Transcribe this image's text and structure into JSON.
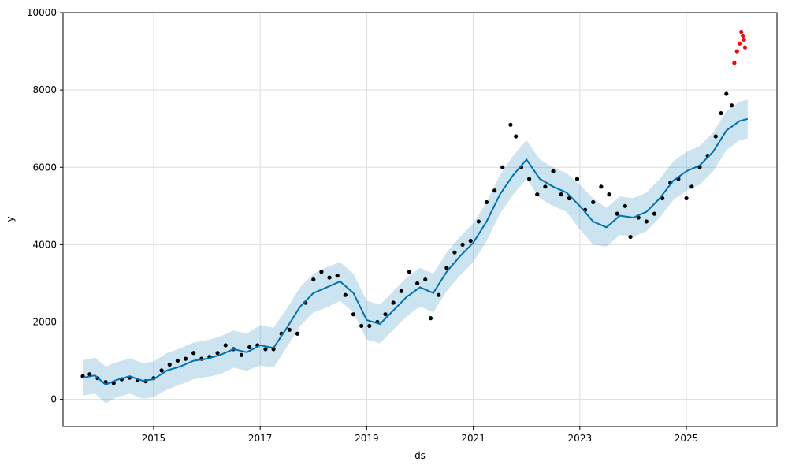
{
  "chart_data": {
    "type": "line",
    "title": "",
    "xlabel": "ds",
    "ylabel": "y",
    "xlim": [
      2013.3,
      2026.7
    ],
    "ylim": [
      -700,
      10000
    ],
    "x_ticks": [
      2015,
      2017,
      2019,
      2021,
      2023,
      2025
    ],
    "y_ticks": [
      0,
      2000,
      4000,
      6000,
      8000,
      10000
    ],
    "grid": true,
    "legend": "none",
    "colors": {
      "observed": "#000000",
      "forecast_line": "#0072B2",
      "uncertainty_band": "#0072B2",
      "new_points": "#ff0000",
      "grid": "#dddddd"
    },
    "series": [
      {
        "kind": "forecast",
        "x": [
          2013.67,
          2013.9,
          2014.1,
          2014.3,
          2014.55,
          2014.8,
          2015.0,
          2015.25,
          2015.5,
          2015.75,
          2016.0,
          2016.25,
          2016.5,
          2016.75,
          2017.0,
          2017.25,
          2017.5,
          2017.75,
          2018.0,
          2018.25,
          2018.5,
          2018.75,
          2019.0,
          2019.25,
          2019.5,
          2019.75,
          2020.0,
          2020.25,
          2020.5,
          2020.75,
          2021.0,
          2021.25,
          2021.5,
          2021.75,
          2022.0,
          2022.25,
          2022.5,
          2022.75,
          2023.0,
          2023.25,
          2023.5,
          2023.75,
          2024.0,
          2024.25,
          2024.5,
          2024.75,
          2025.0,
          2025.25,
          2025.5,
          2025.75,
          2026.0,
          2026.15
        ],
        "yhat": [
          560,
          620,
          380,
          500,
          600,
          480,
          520,
          750,
          850,
          1000,
          1050,
          1150,
          1300,
          1220,
          1400,
          1330,
          1850,
          2400,
          2750,
          2900,
          3050,
          2750,
          2050,
          1950,
          2300,
          2650,
          2900,
          2750,
          3300,
          3700,
          4050,
          4600,
          5300,
          5800,
          6200,
          5700,
          5500,
          5350,
          5000,
          4600,
          4450,
          4750,
          4700,
          4850,
          5200,
          5650,
          5900,
          6050,
          6400,
          6950,
          7200,
          7250
        ],
        "lower": [
          100,
          150,
          -100,
          50,
          150,
          20,
          60,
          250,
          380,
          520,
          580,
          650,
          820,
          740,
          880,
          820,
          1350,
          1900,
          2250,
          2380,
          2550,
          2250,
          1550,
          1450,
          1800,
          2150,
          2400,
          2250,
          2800,
          3200,
          3550,
          4100,
          4800,
          5300,
          5700,
          5200,
          5000,
          4850,
          4400,
          4000,
          3950,
          4250,
          4200,
          4350,
          4700,
          5150,
          5400,
          5550,
          5900,
          6450,
          6700,
          6750
        ],
        "upper": [
          1020,
          1080,
          850,
          960,
          1060,
          940,
          980,
          1200,
          1320,
          1470,
          1530,
          1630,
          1780,
          1700,
          1920,
          1850,
          2350,
          2900,
          3250,
          3420,
          3550,
          3250,
          2550,
          2450,
          2800,
          3150,
          3400,
          3250,
          3800,
          4200,
          4550,
          5100,
          5800,
          6300,
          6700,
          6200,
          6000,
          5850,
          5550,
          5200,
          4950,
          5250,
          5200,
          5350,
          5700,
          6150,
          6400,
          6550,
          6900,
          7450,
          7700,
          7750
        ]
      },
      {
        "kind": "observed",
        "x": [
          2013.67,
          2013.8,
          2013.95,
          2014.1,
          2014.25,
          2014.4,
          2014.55,
          2014.7,
          2014.85,
          2015.0,
          2015.15,
          2015.3,
          2015.45,
          2015.6,
          2015.75,
          2015.9,
          2016.05,
          2016.2,
          2016.35,
          2016.5,
          2016.65,
          2016.8,
          2016.95,
          2017.1,
          2017.25,
          2017.4,
          2017.55,
          2017.7,
          2017.85,
          2018.0,
          2018.15,
          2018.3,
          2018.45,
          2018.6,
          2018.75,
          2018.9,
          2019.05,
          2019.2,
          2019.35,
          2019.5,
          2019.65,
          2019.8,
          2019.95,
          2020.1,
          2020.2,
          2020.35,
          2020.5,
          2020.65,
          2020.8,
          2020.95,
          2021.1,
          2021.25,
          2021.4,
          2021.55,
          2021.7,
          2021.8,
          2021.9,
          2022.05,
          2022.2,
          2022.35,
          2022.5,
          2022.65,
          2022.8,
          2022.95,
          2023.1,
          2023.25,
          2023.4,
          2023.55,
          2023.7,
          2023.85,
          2023.95,
          2024.1,
          2024.25,
          2024.4,
          2024.55,
          2024.7,
          2024.85,
          2025.0,
          2025.1,
          2025.25,
          2025.4,
          2025.55,
          2025.65,
          2025.75,
          2025.85
        ],
        "y": [
          600,
          650,
          550,
          450,
          420,
          520,
          560,
          500,
          470,
          550,
          750,
          900,
          1000,
          1050,
          1200,
          1050,
          1100,
          1200,
          1400,
          1300,
          1150,
          1350,
          1400,
          1300,
          1300,
          1700,
          1800,
          1700,
          2500,
          3100,
          3300,
          3150,
          3200,
          2700,
          2200,
          1900,
          1900,
          2000,
          2200,
          2500,
          2800,
          3300,
          3000,
          3100,
          2100,
          2700,
          3400,
          3800,
          4000,
          4100,
          4600,
          5100,
          5400,
          6000,
          7100,
          6800,
          6000,
          5700,
          5300,
          5500,
          5900,
          5300,
          5200,
          5700,
          4900,
          5100,
          5500,
          5300,
          4800,
          5000,
          4200,
          4700,
          4600,
          4800,
          5200,
          5600,
          5700,
          5200,
          5500,
          6000,
          6300,
          6800,
          7400,
          7900,
          7600
        ]
      },
      {
        "kind": "new",
        "x": [
          2025.9,
          2025.95,
          2026.0,
          2026.03,
          2026.06,
          2026.08,
          2026.1
        ],
        "y": [
          8700,
          9000,
          9200,
          9500,
          9400,
          9300,
          9100
        ]
      }
    ]
  }
}
